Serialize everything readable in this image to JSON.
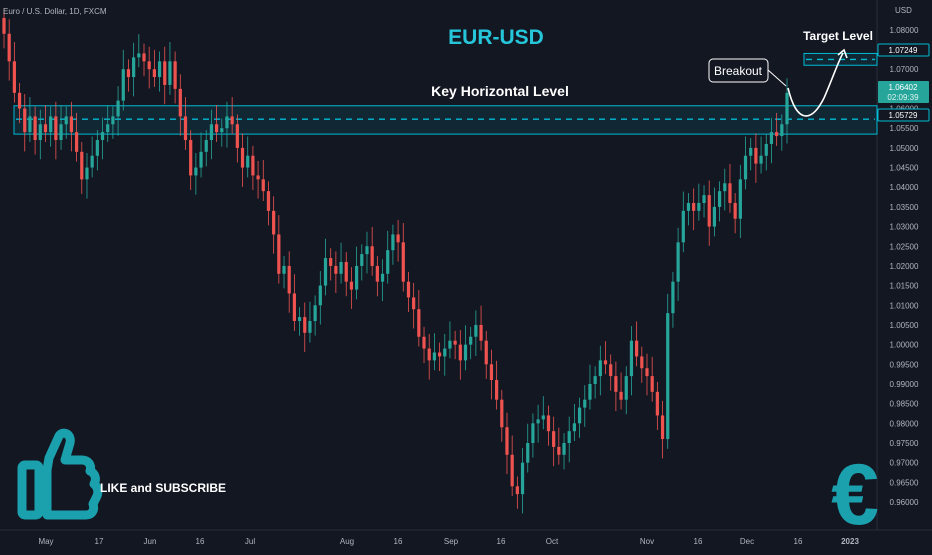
{
  "symbol_header": "Euro / U.S. Dollar, 1D, FXCM",
  "title": "EUR-USD",
  "currency_label": "USD",
  "annotations": {
    "key_level_label": "Key Horizontal Level",
    "target_level_label": "Target Level",
    "breakout_label": "Breakout",
    "like_subscribe": "LIKE and SUBSCRIBE",
    "euro_symbol": "€"
  },
  "price_badges": {
    "current_price": "1.06402",
    "countdown": "02:09:39",
    "key_level_price": "1.05729",
    "target_price": "1.07249"
  },
  "colors": {
    "background": "#131722",
    "up_candle": "#26a69a",
    "down_candle": "#ef5350",
    "accent": "#00bcd4",
    "text": "#d1d4dc",
    "muted": "#787b86"
  },
  "chart_data": {
    "type": "candlestick",
    "title": "EUR-USD",
    "ylabel": "USD",
    "ylim": [
      0.9567,
      1.0825
    ],
    "y_ticks": [
      "1.08000",
      "1.07500",
      "1.07000",
      "1.06500",
      "1.06000",
      "1.05500",
      "1.05000",
      "1.04500",
      "1.04000",
      "1.03500",
      "1.03000",
      "1.02500",
      "1.02000",
      "1.01500",
      "1.01000",
      "1.00500",
      "1.00000",
      "0.99500",
      "0.99000",
      "0.98500",
      "0.98000",
      "0.97500",
      "0.97000",
      "0.96500",
      "0.96000"
    ],
    "x_ticks": [
      "May",
      "17",
      "Jun",
      "16",
      "Jul",
      "Aug",
      "16",
      "Sep",
      "16",
      "Oct",
      "Nov",
      "16",
      "Dec",
      "16",
      "2023"
    ],
    "key_level": 1.05729,
    "key_zone": [
      1.0535,
      1.0607
    ],
    "target_level": 1.07249,
    "target_zone": [
      1.071,
      1.074
    ],
    "last_price": 1.06402,
    "series_close": [
      1.079,
      1.072,
      1.064,
      1.06,
      1.054,
      1.058,
      1.052,
      1.056,
      1.054,
      1.058,
      1.052,
      1.056,
      1.058,
      1.054,
      1.049,
      1.042,
      1.045,
      1.048,
      1.052,
      1.054,
      1.056,
      1.058,
      1.062,
      1.07,
      1.068,
      1.073,
      1.074,
      1.072,
      1.07,
      1.068,
      1.072,
      1.066,
      1.072,
      1.065,
      1.058,
      1.052,
      1.043,
      1.045,
      1.049,
      1.052,
      1.056,
      1.054,
      1.055,
      1.058,
      1.056,
      1.05,
      1.045,
      1.048,
      1.043,
      1.042,
      1.039,
      1.034,
      1.028,
      1.018,
      1.02,
      1.013,
      1.006,
      1.007,
      1.003,
      1.006,
      1.01,
      1.015,
      1.022,
      1.02,
      1.018,
      1.021,
      1.016,
      1.014,
      1.02,
      1.023,
      1.025,
      1.02,
      1.016,
      1.018,
      1.024,
      1.028,
      1.026,
      1.016,
      1.012,
      1.009,
      1.002,
      0.999,
      0.996,
      0.998,
      0.997,
      0.999,
      1.001,
      1.0,
      0.996,
      1.0,
      1.002,
      1.005,
      1.001,
      0.995,
      0.991,
      0.986,
      0.979,
      0.972,
      0.964,
      0.962,
      0.97,
      0.975,
      0.98,
      0.981,
      0.982,
      0.978,
      0.974,
      0.972,
      0.975,
      0.978,
      0.98,
      0.984,
      0.986,
      0.99,
      0.992,
      0.996,
      0.995,
      0.992,
      0.988,
      0.986,
      0.992,
      1.001,
      0.997,
      0.994,
      0.992,
      0.988,
      0.982,
      0.976,
      1.008,
      1.016,
      1.026,
      1.034,
      1.036,
      1.034,
      1.036,
      1.038,
      1.03,
      1.035,
      1.039,
      1.041,
      1.036,
      1.032,
      1.042,
      1.048,
      1.05,
      1.046,
      1.048,
      1.051,
      1.054,
      1.053,
      1.056,
      1.064
    ]
  }
}
